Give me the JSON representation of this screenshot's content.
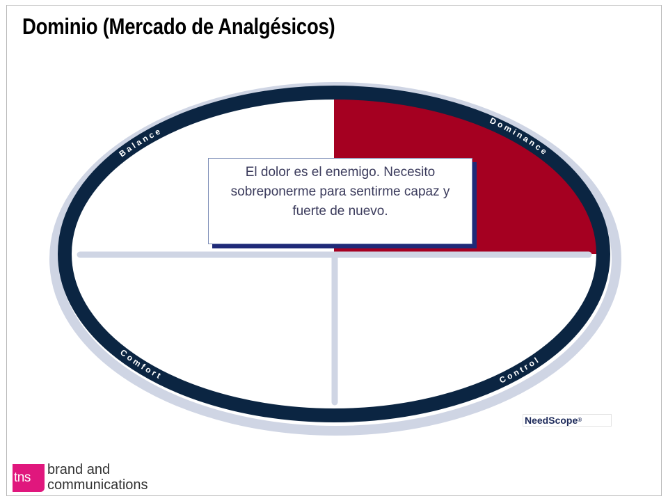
{
  "slide": {
    "title": "Dominio (Mercado de Analgésicos)"
  },
  "diagram": {
    "quadrant_labels": {
      "top_left": "B a l a n c e",
      "top_right": "D o m i n a n c e",
      "bottom_left": "C o m f o r t",
      "bottom_right": "C o n t r o l"
    },
    "highlighted_quadrant": "top_right",
    "colors": {
      "ring": "#0b2542",
      "ring_shadow": "#cfd5e4",
      "highlight": "#a50021",
      "axes": "#cfd5e4",
      "label_text": "#ffffff"
    }
  },
  "callout": {
    "text": "El dolor es el enemigo. Necesito sobreponerme para sentirme capaz y fuerte de nuevo."
  },
  "needscope_logo": {
    "text": "NeedScope",
    "mark": "®"
  },
  "footer": {
    "badge": "tns",
    "brand_line1": "brand and",
    "brand_line2": "communications"
  }
}
